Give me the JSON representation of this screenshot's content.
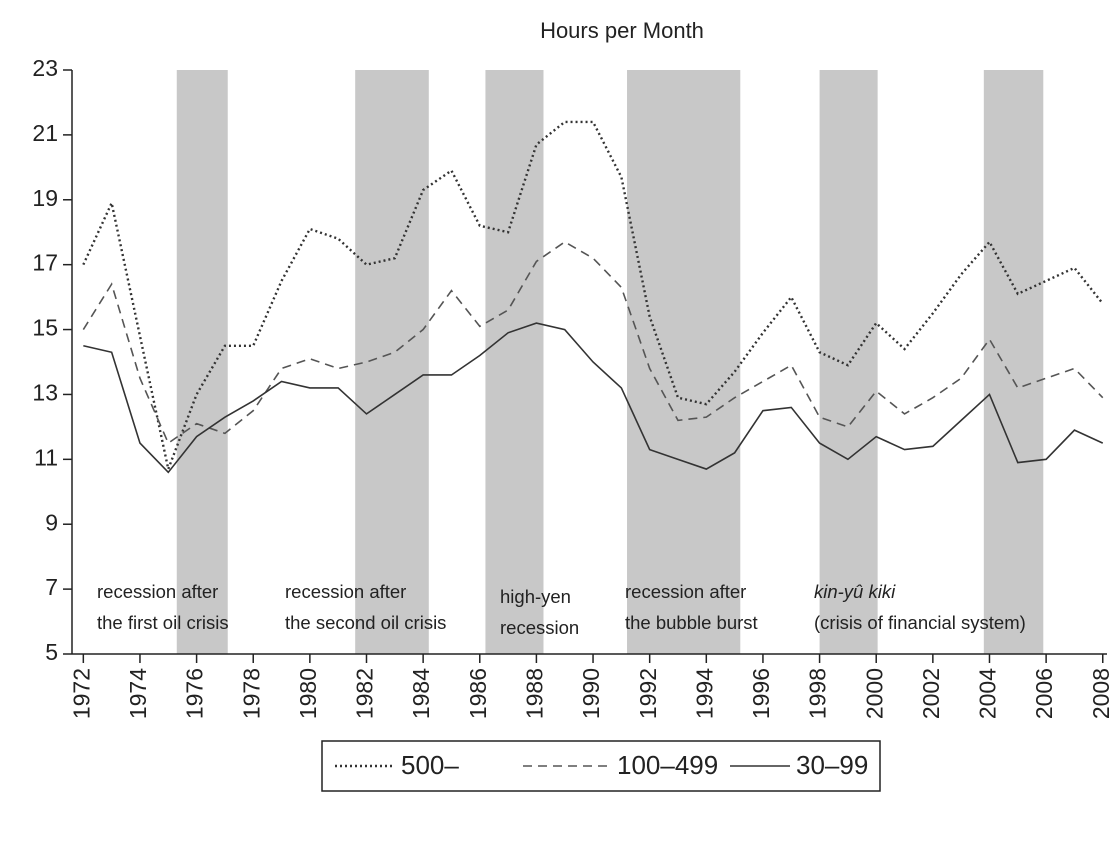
{
  "chart_data": {
    "type": "line",
    "title": "Hours per Month",
    "x": [
      1972,
      1973,
      1974,
      1975,
      1976,
      1977,
      1978,
      1979,
      1980,
      1981,
      1982,
      1983,
      1984,
      1985,
      1986,
      1987,
      1988,
      1989,
      1990,
      1991,
      1992,
      1993,
      1994,
      1995,
      1996,
      1997,
      1998,
      1999,
      2000,
      2001,
      2002,
      2003,
      2004,
      2005,
      2006,
      2007,
      2008
    ],
    "series": [
      {
        "name": "500–",
        "color": "#333333",
        "style": "dotted",
        "values": [
          17.0,
          18.9,
          14.8,
          10.7,
          13.0,
          14.5,
          14.5,
          16.5,
          18.1,
          17.8,
          17.0,
          17.2,
          19.3,
          19.9,
          18.2,
          18.0,
          20.7,
          21.4,
          21.4,
          19.7,
          15.4,
          12.9,
          12.7,
          13.7,
          14.9,
          16.0,
          14.3,
          13.9,
          15.2,
          14.4,
          15.5,
          16.7,
          17.7,
          16.1,
          16.5,
          16.9,
          15.8
        ]
      },
      {
        "name": "100–499",
        "color": "#555555",
        "style": "dashed",
        "values": [
          15.0,
          16.4,
          13.5,
          11.5,
          12.1,
          11.8,
          12.5,
          13.8,
          14.1,
          13.8,
          14.0,
          14.3,
          15.0,
          16.2,
          15.1,
          15.6,
          17.1,
          17.7,
          17.2,
          16.3,
          13.8,
          12.2,
          12.3,
          12.9,
          13.4,
          13.9,
          12.3,
          12.0,
          13.1,
          12.4,
          12.9,
          13.5,
          14.7,
          13.2,
          13.5,
          13.8,
          12.9
        ]
      },
      {
        "name": "30–99",
        "color": "#333333",
        "style": "solid",
        "values": [
          14.5,
          14.3,
          11.5,
          10.6,
          11.7,
          12.3,
          12.8,
          13.4,
          13.2,
          13.2,
          12.4,
          13.0,
          13.6,
          13.6,
          14.2,
          14.9,
          15.2,
          15.0,
          14.0,
          13.2,
          11.3,
          11.0,
          10.7,
          11.2,
          12.5,
          12.6,
          11.5,
          11.0,
          11.7,
          11.3,
          11.4,
          12.2,
          13.0,
          10.9,
          11.0,
          11.9,
          11.5
        ]
      }
    ],
    "shaded_periods": [
      [
        1975.3,
        1977.1
      ],
      [
        1981.6,
        1984.2
      ],
      [
        1986.2,
        1988.25
      ],
      [
        1991.2,
        1995.2
      ],
      [
        1998.0,
        2000.05
      ],
      [
        2003.8,
        2005.9
      ]
    ],
    "shade_color": "#c8c8c8",
    "annotations": [
      [
        "recession after",
        "the first oil crisis"
      ],
      [
        "recession after",
        "the second oil crisis"
      ],
      [
        "high-yen",
        "recession"
      ],
      [
        "recession after",
        "the bubble burst"
      ],
      [
        "kin-yû kiki",
        "(crisis of financial system)"
      ]
    ],
    "xlim": [
      1971.6,
      2008.15
    ],
    "ylim": [
      5,
      23
    ],
    "xticks": [
      1972,
      1974,
      1976,
      1978,
      1980,
      1982,
      1984,
      1986,
      1988,
      1990,
      1992,
      1994,
      1996,
      1998,
      2000,
      2002,
      2004,
      2006,
      2008
    ],
    "yticks": [
      5,
      7,
      9,
      11,
      13,
      15,
      17,
      19,
      21,
      23
    ],
    "legend": "bottom"
  }
}
